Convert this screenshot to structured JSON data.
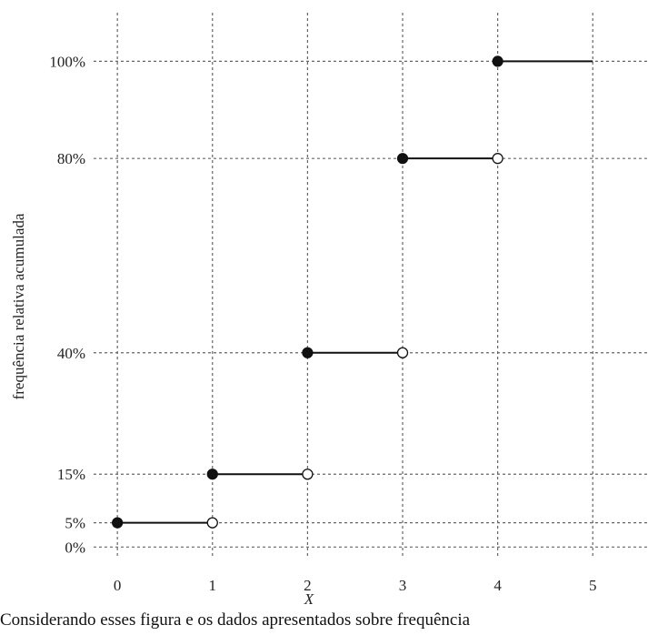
{
  "chart_data": {
    "type": "line",
    "subtype": "step-cdf",
    "xlabel": "X",
    "ylabel": "frequência relativa acumulada",
    "x_ticks": [
      "0",
      "1",
      "2",
      "3",
      "4",
      "5"
    ],
    "y_ticks": [
      {
        "value": 0,
        "label": "0%"
      },
      {
        "value": 5,
        "label": "5%"
      },
      {
        "value": 15,
        "label": "15%"
      },
      {
        "value": 40,
        "label": "40%"
      },
      {
        "value": 80,
        "label": "80%"
      },
      {
        "value": 100,
        "label": "100%"
      }
    ],
    "xlim": [
      -0.25,
      5.6
    ],
    "ylim": [
      -2,
      110
    ],
    "grid": true,
    "steps": [
      {
        "x_start": 0,
        "x_end": 1,
        "y": 5,
        "closed_start": true,
        "open_end": true
      },
      {
        "x_start": 1,
        "x_end": 2,
        "y": 15,
        "closed_start": true,
        "open_end": true
      },
      {
        "x_start": 2,
        "x_end": 3,
        "y": 40,
        "closed_start": true,
        "open_end": true
      },
      {
        "x_start": 3,
        "x_end": 4,
        "y": 80,
        "closed_start": true,
        "open_end": true
      },
      {
        "x_start": 4,
        "x_end": 5,
        "y": 100,
        "closed_start": true,
        "open_end": false
      }
    ],
    "colors": {
      "line": "#111111",
      "grid": "#666666",
      "open_fill": "#ffffff"
    }
  },
  "caption": "Considerando esses figura e os dados apresentados sobre frequência"
}
